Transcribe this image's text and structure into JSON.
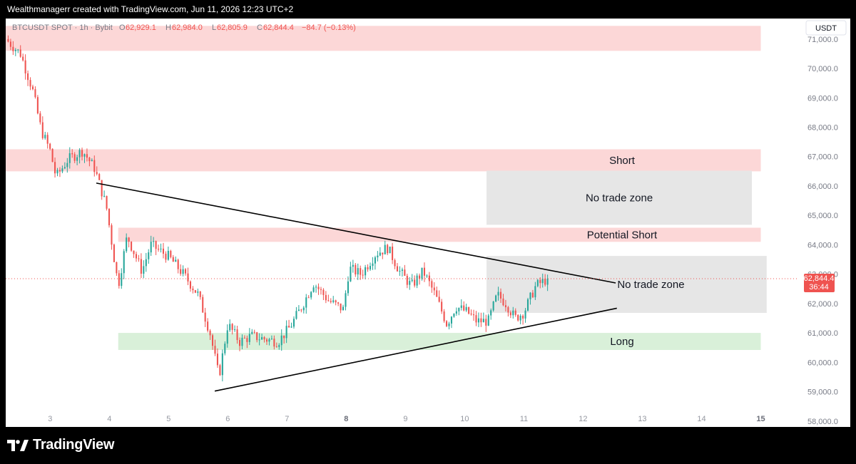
{
  "header": {
    "credit": "Wealthmanagerr created with TradingView.com, Jun 11, 2026 12:23 UTC+2"
  },
  "legend": {
    "symbol": "BTCUSDT SPOT · 1h · Bybit",
    "o_label": "O",
    "o": "62,929.1",
    "h_label": "H",
    "h": "62,984.0",
    "l_label": "L",
    "l": "62,805.9",
    "c_label": "C",
    "c": "62,844.4",
    "change": "−84.7 (−0.13%)"
  },
  "currency_button": "USDT",
  "price_label": {
    "price": "62,844.4",
    "countdown": "36:44"
  },
  "footer": {
    "logo_text": "TradingView"
  },
  "colors": {
    "up": "#26a69a",
    "down": "#ef5350",
    "resistance_zone": "#fcd7d7",
    "support_zone": "#d9f0d9",
    "neutral_zone": "#e6e6e6"
  },
  "chart_data": {
    "type": "candlestick",
    "symbol": "BTCUSDT",
    "interval": "1h",
    "exchange": "Bybit",
    "ylim": [
      57800,
      71700
    ],
    "xlim": [
      2.25,
      15.5
    ],
    "y_ticks": [
      "58,000.0",
      "59,000.0",
      "60,000.0",
      "61,000.0",
      "62,000.0",
      "63,000.0",
      "64,000.0",
      "65,000.0",
      "66,000.0",
      "67,000.0",
      "68,000.0",
      "69,000.0",
      "70,000.0",
      "71,000.0"
    ],
    "x_ticks": [
      {
        "x": 3,
        "label": "3"
      },
      {
        "x": 4,
        "label": "4"
      },
      {
        "x": 5,
        "label": "5"
      },
      {
        "x": 6,
        "label": "6"
      },
      {
        "x": 7,
        "label": "7"
      },
      {
        "x": 8,
        "label": "8"
      },
      {
        "x": 9,
        "label": "9"
      },
      {
        "x": 10,
        "label": "10"
      },
      {
        "x": 11,
        "label": "11"
      },
      {
        "x": 12,
        "label": "12"
      },
      {
        "x": 13,
        "label": "13"
      },
      {
        "x": 14,
        "label": "14"
      },
      {
        "x": 15,
        "label": "15"
      }
    ],
    "last_price": 62844.4,
    "zones": [
      {
        "x0": 2.25,
        "x1": 15.0,
        "y0": 70600,
        "y1": 71450,
        "kind": "resistance",
        "label": ""
      },
      {
        "x0": 2.25,
        "x1": 15.0,
        "y0": 66500,
        "y1": 67250,
        "kind": "resistance",
        "label": "Short"
      },
      {
        "x0": 4.15,
        "x1": 15.0,
        "y0": 64100,
        "y1": 64580,
        "kind": "resistance",
        "label": "Potential Short"
      },
      {
        "x0": 4.15,
        "x1": 15.0,
        "y0": 60420,
        "y1": 61000,
        "kind": "support",
        "label": "Long"
      },
      {
        "x0": 10.37,
        "x1": 14.85,
        "y0": 64680,
        "y1": 66520,
        "kind": "neutral",
        "label": "No trade zone"
      },
      {
        "x0": 10.37,
        "x1": 15.1,
        "y0": 61680,
        "y1": 63620,
        "kind": "neutral",
        "label": "No trade zone"
      }
    ],
    "trendlines": [
      {
        "x0": 3.78,
        "y0": 66100,
        "x1": 12.55,
        "y1": 62700
      },
      {
        "x0": 5.78,
        "y0": 59020,
        "x1": 12.57,
        "y1": 61840
      }
    ],
    "keypoints": [
      {
        "x": 2.25,
        "y": 71000
      },
      {
        "x": 2.5,
        "y": 70500
      },
      {
        "x": 2.7,
        "y": 69300
      },
      {
        "x": 2.85,
        "y": 67900
      },
      {
        "x": 3.0,
        "y": 67200
      },
      {
        "x": 3.1,
        "y": 66300
      },
      {
        "x": 3.3,
        "y": 66900
      },
      {
        "x": 3.55,
        "y": 67200
      },
      {
        "x": 3.75,
        "y": 66600
      },
      {
        "x": 3.95,
        "y": 65300
      },
      {
        "x": 4.15,
        "y": 62600
      },
      {
        "x": 4.3,
        "y": 64300
      },
      {
        "x": 4.55,
        "y": 63100
      },
      {
        "x": 4.7,
        "y": 64000
      },
      {
        "x": 5.0,
        "y": 63600
      },
      {
        "x": 5.25,
        "y": 63000
      },
      {
        "x": 5.5,
        "y": 62300
      },
      {
        "x": 5.7,
        "y": 61000
      },
      {
        "x": 5.85,
        "y": 59500
      },
      {
        "x": 6.0,
        "y": 61300
      },
      {
        "x": 6.2,
        "y": 60700
      },
      {
        "x": 6.4,
        "y": 60900
      },
      {
        "x": 6.6,
        "y": 60800
      },
      {
        "x": 6.85,
        "y": 60700
      },
      {
        "x": 7.05,
        "y": 61200
      },
      {
        "x": 7.25,
        "y": 61900
      },
      {
        "x": 7.45,
        "y": 62700
      },
      {
        "x": 7.7,
        "y": 62100
      },
      {
        "x": 7.95,
        "y": 61800
      },
      {
        "x": 8.05,
        "y": 63200
      },
      {
        "x": 8.25,
        "y": 63000
      },
      {
        "x": 8.5,
        "y": 63700
      },
      {
        "x": 8.7,
        "y": 63900
      },
      {
        "x": 8.9,
        "y": 63100
      },
      {
        "x": 9.1,
        "y": 62600
      },
      {
        "x": 9.3,
        "y": 63100
      },
      {
        "x": 9.5,
        "y": 62300
      },
      {
        "x": 9.7,
        "y": 61300
      },
      {
        "x": 9.85,
        "y": 61900
      },
      {
        "x": 10.05,
        "y": 61700
      },
      {
        "x": 10.2,
        "y": 61400
      },
      {
        "x": 10.4,
        "y": 61400
      },
      {
        "x": 10.55,
        "y": 62300
      },
      {
        "x": 10.7,
        "y": 62000
      },
      {
        "x": 10.85,
        "y": 61500
      },
      {
        "x": 11.0,
        "y": 61700
      },
      {
        "x": 11.2,
        "y": 62600
      },
      {
        "x": 11.4,
        "y": 62844
      }
    ],
    "candle_count": 220
  }
}
